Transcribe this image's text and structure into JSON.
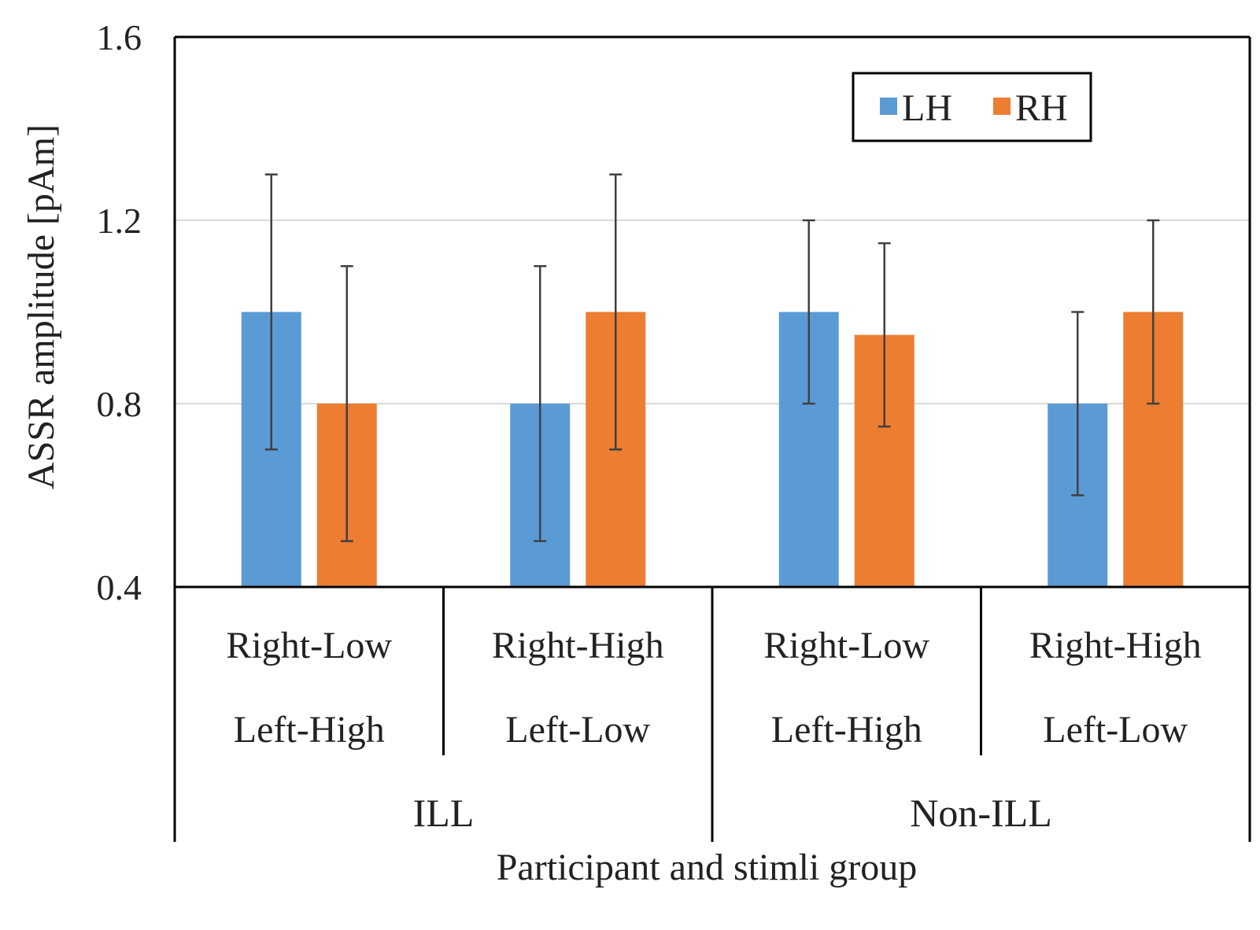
{
  "chart_data": {
    "type": "bar",
    "title": "",
    "xlabel": "Participant and stimli group",
    "ylabel": "ASSR amplitude [pAm]",
    "ylim": [
      0.4,
      1.6
    ],
    "yticks": [
      0.4,
      0.8,
      1.2,
      1.6
    ],
    "ytick_labels": [
      "0.4",
      "0.8",
      "1.2",
      "1.6"
    ],
    "grid": true,
    "legend_position": "top-right",
    "groups": [
      {
        "label": "ILL",
        "categories": [
          0,
          1
        ]
      },
      {
        "label": "Non-ILL",
        "categories": [
          2,
          3
        ]
      }
    ],
    "categories": [
      {
        "line1": "Right-Low",
        "line2": "Left-High"
      },
      {
        "line1": "Right-High",
        "line2": "Left-Low"
      },
      {
        "line1": "Right-Low",
        "line2": "Left-High"
      },
      {
        "line1": "Right-High",
        "line2": "Left-Low"
      }
    ],
    "series": [
      {
        "name": "LH",
        "color": "#5b9bd5",
        "values": [
          1.0,
          0.8,
          1.0,
          0.8
        ],
        "err_low": [
          0.7,
          0.5,
          0.8,
          0.6
        ],
        "err_high": [
          1.3,
          1.1,
          1.2,
          1.0
        ]
      },
      {
        "name": "RH",
        "color": "#ed7d31",
        "values": [
          0.8,
          1.0,
          0.95,
          1.0
        ],
        "err_low": [
          0.5,
          0.7,
          0.75,
          0.8
        ],
        "err_high": [
          1.1,
          1.3,
          1.15,
          1.2
        ]
      }
    ]
  }
}
